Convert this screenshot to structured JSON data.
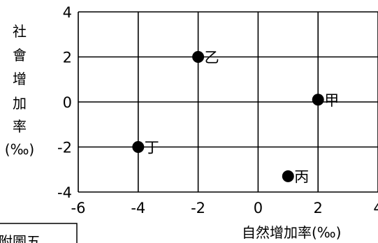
{
  "chart_data": {
    "type": "scatter",
    "xlabel": "自然增加率(‰)",
    "ylabel": "社會增加率(‰)",
    "xlim": [
      -6,
      4
    ],
    "ylim": [
      -4,
      4
    ],
    "x_ticks": [
      "-6",
      "-4",
      "-2",
      "0",
      "2",
      "4"
    ],
    "y_ticks": [
      "4",
      "2",
      "0",
      "-2",
      "-4"
    ],
    "grid": true,
    "points": [
      {
        "label": "甲",
        "x": 2.0,
        "y": 0.1
      },
      {
        "label": "乙",
        "x": -2.0,
        "y": 2.0
      },
      {
        "label": "丙",
        "x": 1.0,
        "y": -3.3
      },
      {
        "label": "丁",
        "x": -4.0,
        "y": -2.0
      }
    ]
  },
  "caption_fragment": "附圖五"
}
